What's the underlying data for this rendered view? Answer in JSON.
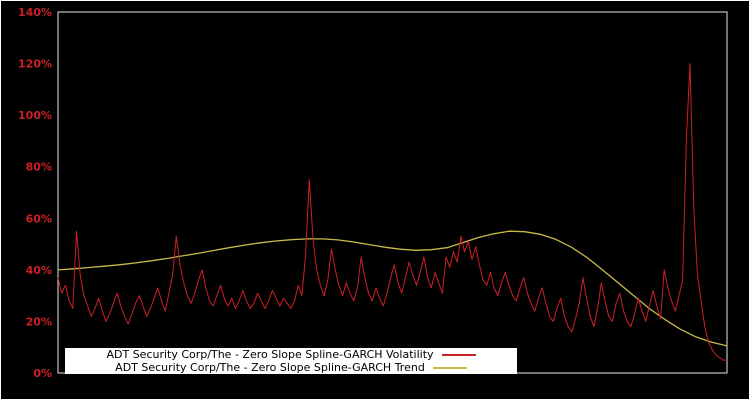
{
  "chart_data": {
    "type": "line",
    "title": "",
    "background": "#000000",
    "axis_color": "#e6e6e6",
    "tick_color": "#cc2026",
    "ylim": [
      0,
      140
    ],
    "yticks": [
      "0%",
      "20%",
      "40%",
      "60%",
      "80%",
      "100%",
      "120%",
      "140%"
    ],
    "ytick_values": [
      0,
      20,
      40,
      60,
      80,
      100,
      120,
      140
    ],
    "grid": false,
    "legend_position": "bottom-left",
    "series": [
      {
        "name": "ADT Security Corp/The - Zero Slope Spline-GARCH Volatility",
        "color": "#cc2026",
        "values": [
          37,
          31,
          34,
          28,
          25,
          55,
          38,
          30,
          26,
          22,
          25,
          29,
          24,
          20,
          23,
          27,
          31,
          26,
          22,
          19,
          23,
          27,
          30,
          26,
          22,
          25,
          29,
          33,
          28,
          24,
          31,
          38,
          53,
          42,
          35,
          30,
          27,
          31,
          36,
          40,
          33,
          28,
          26,
          30,
          34,
          29,
          26,
          29,
          25,
          28,
          32,
          28,
          25,
          27,
          31,
          28,
          25,
          28,
          32,
          29,
          26,
          29,
          27,
          25,
          28,
          34,
          30,
          46,
          75,
          52,
          40,
          34,
          30,
          36,
          48,
          40,
          34,
          30,
          35,
          31,
          28,
          33,
          45,
          37,
          31,
          28,
          33,
          29,
          26,
          31,
          37,
          42,
          35,
          31,
          37,
          43,
          38,
          34,
          39,
          45,
          37,
          33,
          39,
          35,
          31,
          45,
          41,
          47,
          43,
          53,
          47,
          51,
          44,
          49,
          42,
          36,
          34,
          39,
          33,
          30,
          35,
          39,
          34,
          30,
          28,
          33,
          37,
          31,
          27,
          24,
          29,
          33,
          27,
          22,
          20,
          25,
          29,
          22,
          18,
          16,
          21,
          27,
          37,
          29,
          22,
          18,
          25,
          35,
          28,
          22,
          20,
          27,
          31,
          24,
          20,
          18,
          23,
          29,
          24,
          20,
          26,
          32,
          26,
          21,
          40,
          33,
          28,
          24,
          30,
          36,
          90,
          120,
          65,
          38,
          28,
          18,
          12,
          9,
          7,
          6,
          5,
          5
        ]
      },
      {
        "name": "ADT Security Corp/The - Zero Slope Spline-GARCH Trend",
        "color": "#c9ba4b",
        "values": [
          40.0,
          40.4,
          40.9,
          41.4,
          42.0,
          42.7,
          43.5,
          44.4,
          45.4,
          46.4,
          47.5,
          48.6,
          49.6,
          50.5,
          51.2,
          51.7,
          52.0,
          52.0,
          51.6,
          50.8,
          49.8,
          48.8,
          48.0,
          47.6,
          47.8,
          48.6,
          50.5,
          52.5,
          54.0,
          55.0,
          54.8,
          53.8,
          51.8,
          48.8,
          44.8,
          40.0,
          35.0,
          30.0,
          25.0,
          20.8,
          17.0,
          14.0,
          12.0,
          10.5
        ]
      }
    ]
  }
}
